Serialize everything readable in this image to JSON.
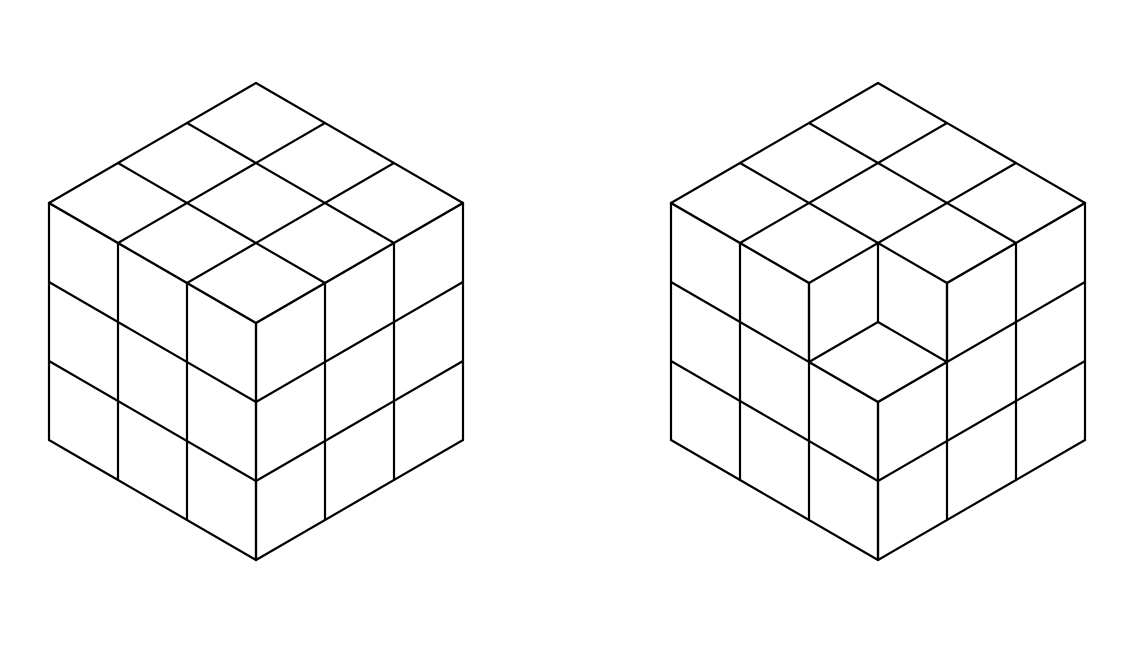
{
  "figure": {
    "background_color": "#ffffff",
    "line_color": "#000000",
    "cubes": [
      {
        "id": "complete",
        "grid": [
          3,
          3,
          3
        ],
        "removed_unit_cubes": 0
      },
      {
        "id": "corner-removed",
        "grid": [
          3,
          3,
          3
        ],
        "removed_unit_cubes": 1,
        "removed_position": "front-top-corner"
      }
    ]
  }
}
